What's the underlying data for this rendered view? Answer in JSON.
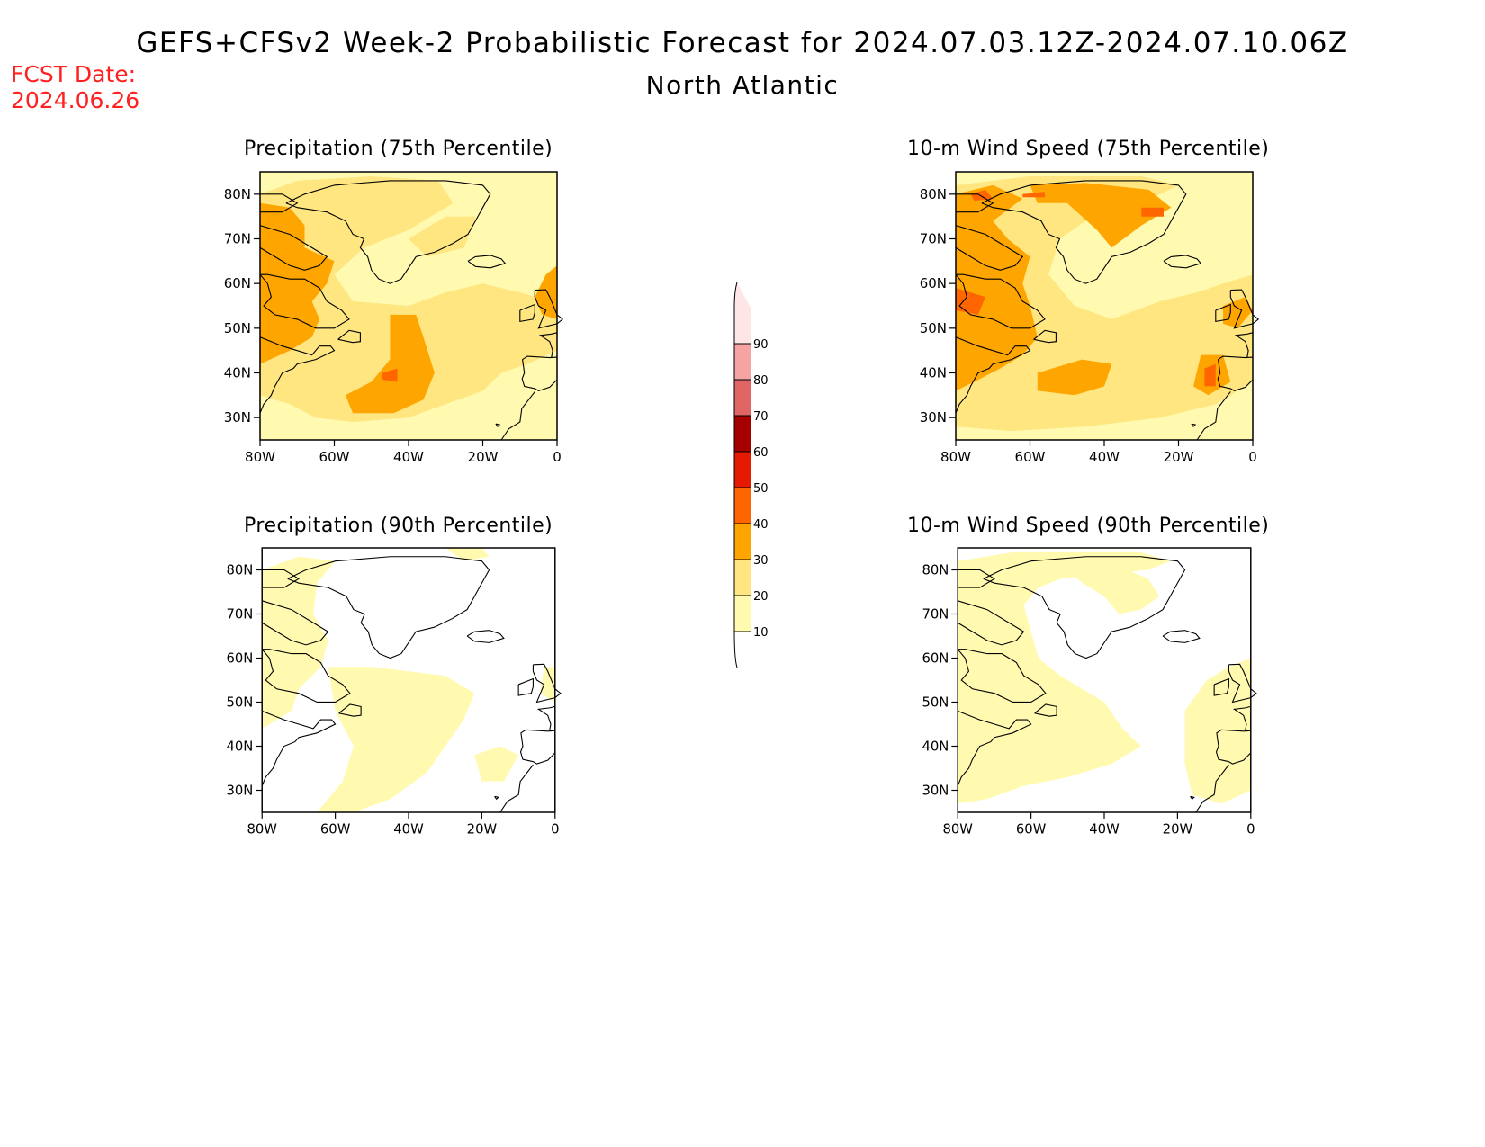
{
  "header": {
    "title": "GEFS+CFSv2 Week-2 Probabilistic Forecast for 2024.07.03.12Z-2024.07.10.06Z",
    "region": "North Atlantic"
  },
  "fcst": {
    "label": "FCST Date:",
    "date": "2024.06.26"
  },
  "lat_ticks": [
    "80N",
    "70N",
    "60N",
    "50N",
    "40N",
    "30N"
  ],
  "lon_ticks": [
    "80W",
    "60W",
    "40W",
    "20W",
    "0"
  ],
  "panels": [
    {
      "id": "precip75",
      "title": "Precipitation (75th Percentile)"
    },
    {
      "id": "wind75",
      "title": "10-m Wind Speed (75th Percentile)"
    },
    {
      "id": "precip90",
      "title": "Precipitation (90th Percentile)"
    },
    {
      "id": "wind90",
      "title": "10-m Wind Speed (90th Percentile)"
    }
  ],
  "colorbar": {
    "levels": [
      "10",
      "20",
      "30",
      "40",
      "50",
      "60",
      "70",
      "80",
      "90"
    ],
    "colors": [
      "#fffaaf",
      "#ffe680",
      "#ffa500",
      "#ff6600",
      "#e61a00",
      "#a50000",
      "#e06666",
      "#f5a3a3",
      "#ffe6e6"
    ]
  }
}
